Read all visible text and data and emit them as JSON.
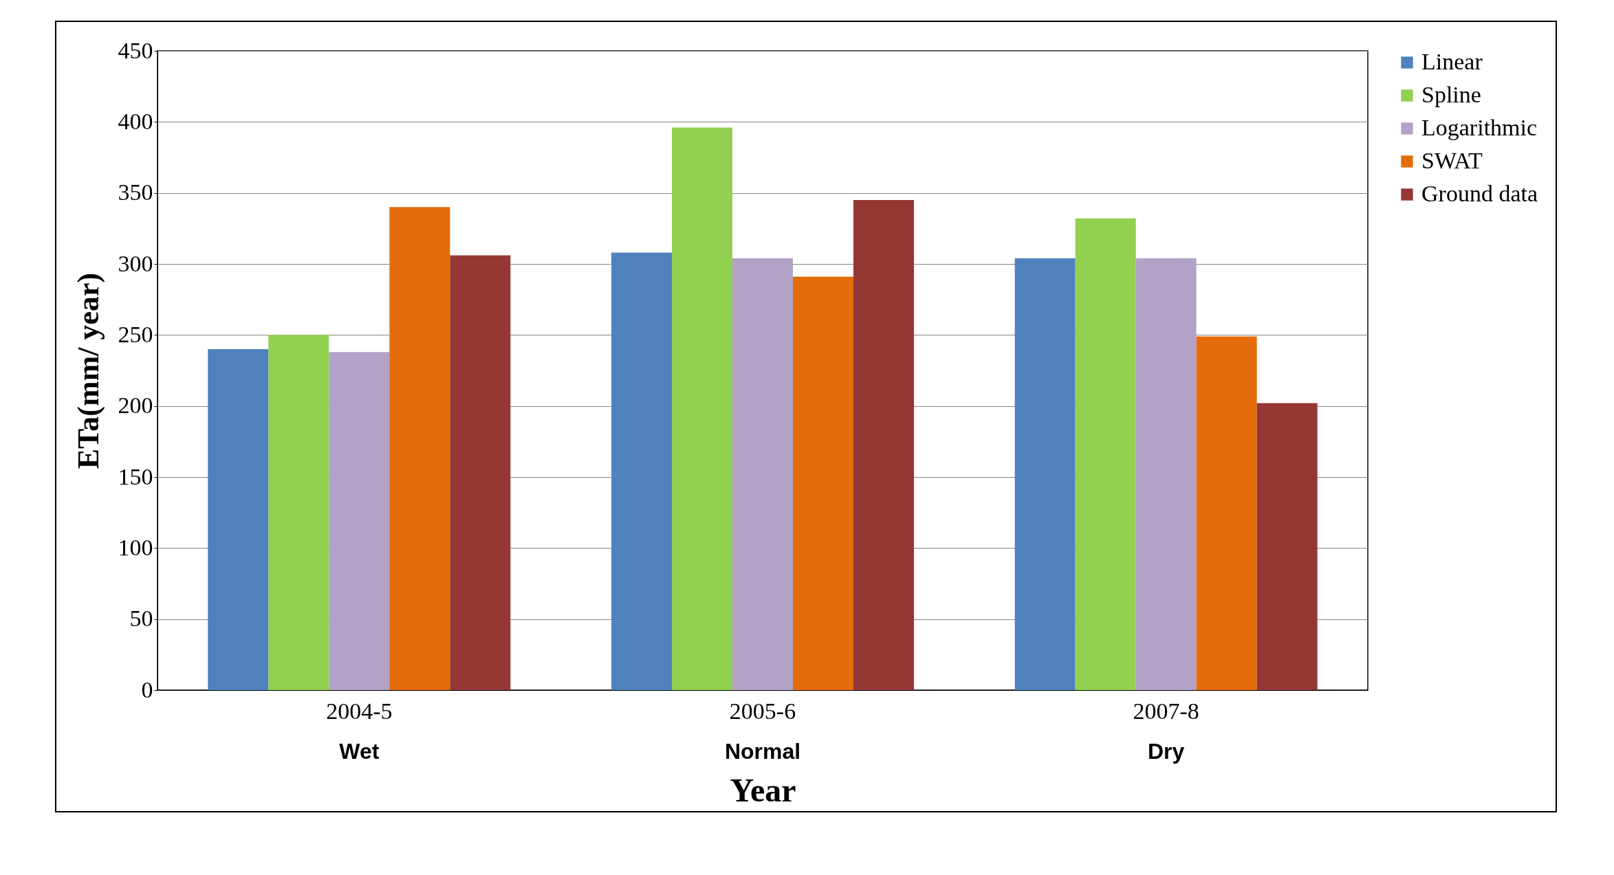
{
  "chart_data": {
    "type": "bar",
    "xlabel": "Year",
    "ylabel": "ETa(mm/ year)",
    "categories": [
      "2004-5",
      "2005-6",
      "2007-8"
    ],
    "series": [
      {
        "name": "Linear",
        "color": "#4f81bd",
        "values": [
          240,
          308,
          304
        ]
      },
      {
        "name": "Spline",
        "color": "#92d050",
        "values": [
          250,
          396,
          332
        ]
      },
      {
        "name": "Logarithmic",
        "color": "#b3a2c7",
        "values": [
          238,
          304,
          304
        ]
      },
      {
        "name": "SWAT",
        "color": "#e46c0a",
        "values": [
          340,
          291,
          249
        ]
      },
      {
        "name": "Ground data",
        "color": "#953735",
        "values": [
          306,
          345,
          202
        ]
      }
    ],
    "annotations": [
      "Wet",
      "Normal",
      "Dry"
    ],
    "ylim": [
      0,
      450
    ],
    "yticks": [
      0,
      50,
      100,
      150,
      200,
      250,
      300,
      350,
      400,
      450
    ],
    "grid": "y",
    "legend": "right"
  }
}
